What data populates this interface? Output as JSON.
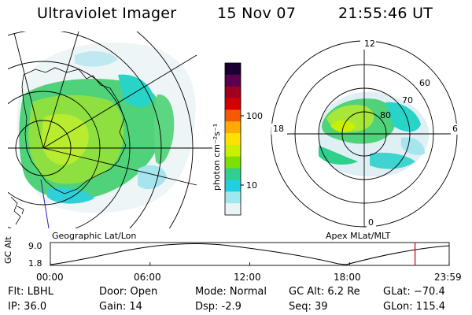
{
  "header": {
    "instrument": "Ultraviolet Imager",
    "date": "15 Nov 07",
    "time": "21:55:46 UT"
  },
  "geo_panel": {
    "label": "Geographic Lat/Lon"
  },
  "apex_panel": {
    "label": "Apex MLat/MLT",
    "mlt_labels": [
      "12",
      "18",
      "6",
      "0"
    ],
    "lat_labels": [
      "60",
      "70",
      "80"
    ]
  },
  "colorbar": {
    "unit_label": "photon cm⁻²s⁻¹",
    "tick_labels": [
      "100",
      "10"
    ],
    "colors": [
      "#1a0033",
      "#5a0050",
      "#a00020",
      "#d40000",
      "#f55a00",
      "#ffaa00",
      "#ffe000",
      "#c8f000",
      "#7ee000",
      "#2ed08c",
      "#20d0e0",
      "#a0e8f0",
      "#e8f4f6"
    ]
  },
  "altitude_plot": {
    "ylabel": "GC Alt",
    "y_ticks": [
      "9.0",
      "1.8"
    ],
    "x_ticks": [
      "00:00",
      "06:00",
      "12:00",
      "18:00",
      "23:59"
    ],
    "marker_time_hours": 21.93,
    "marker_color": "#c00000"
  },
  "info": {
    "flt": "Flt: LBHL",
    "ip": "IP: 36.0",
    "door": "Door: Open",
    "gain": "Gain: 14",
    "mode": "Mode: Normal",
    "dsp": "Dsp:     -2.9",
    "gc_alt": "GC Alt: 6.2 Re",
    "seq": "Seq: 39",
    "glat": "GLat: −70.4",
    "glon": "GLon: 115.4"
  }
}
